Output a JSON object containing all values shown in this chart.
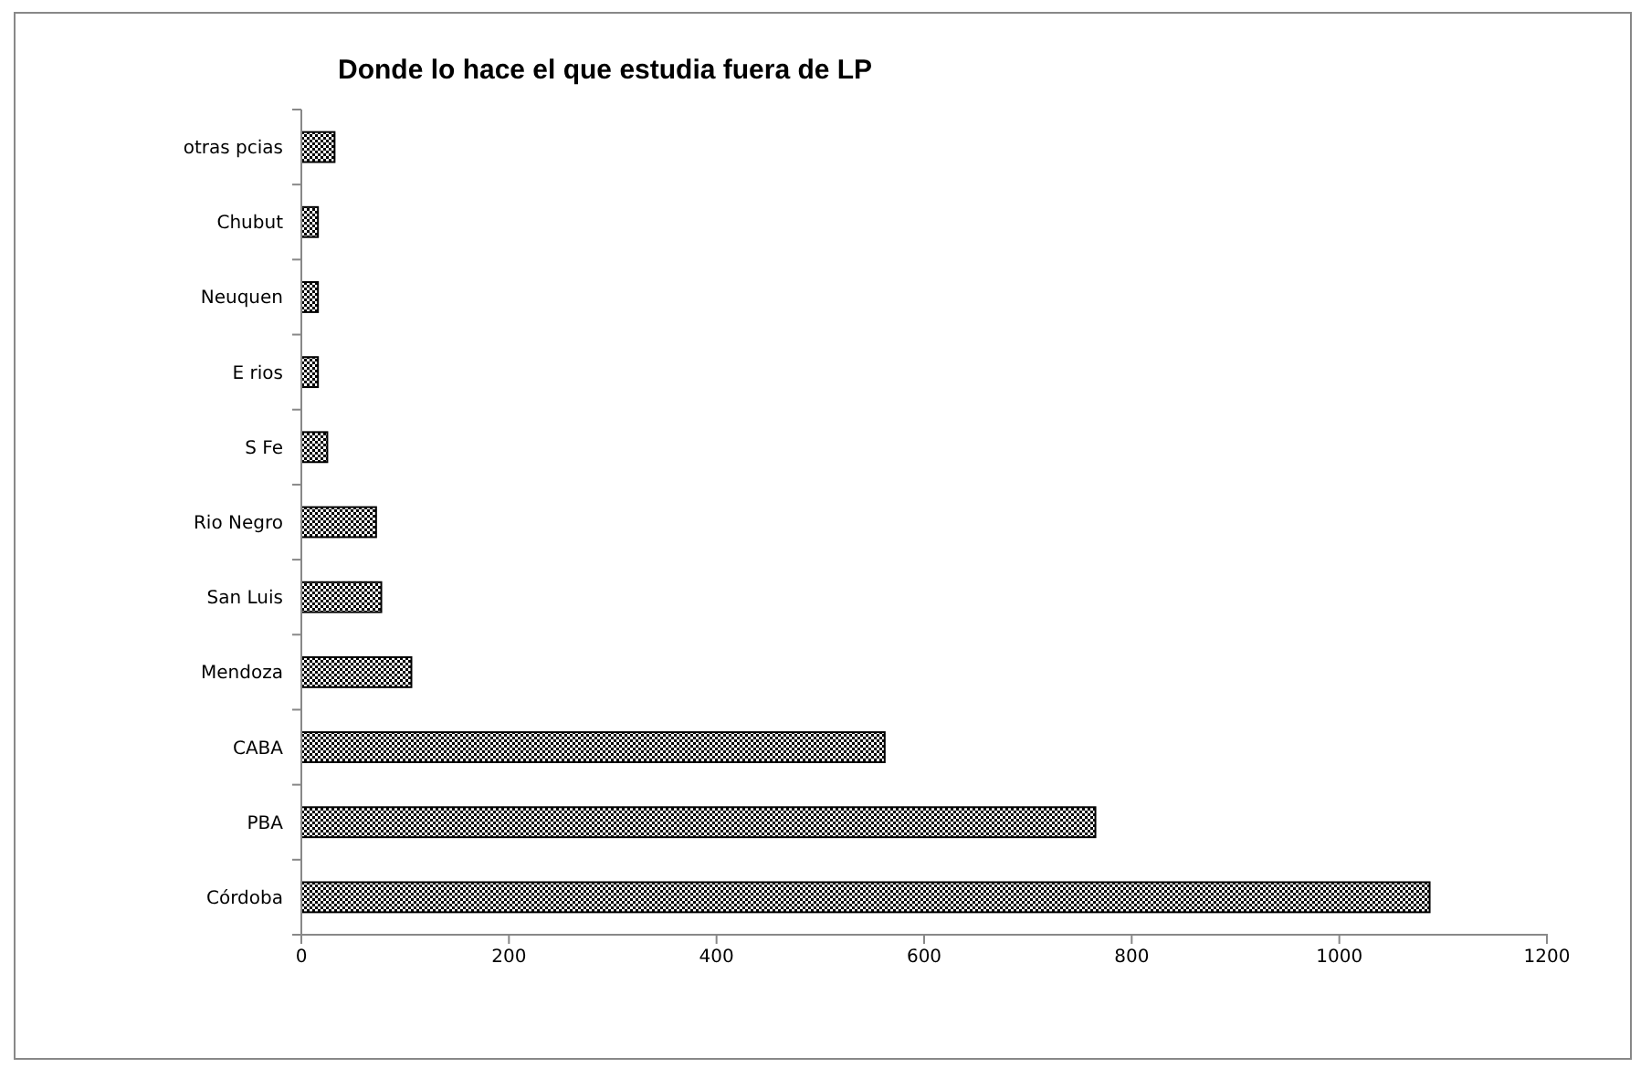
{
  "chart_data": {
    "type": "bar",
    "orientation": "horizontal",
    "title": "Donde lo hace el que estudia fuera de LP",
    "categories": [
      "otras pcias",
      "Chubut",
      "Neuquen",
      "E rios",
      "S Fe",
      "Rio Negro",
      "San Luis",
      "Mendoza",
      "CABA",
      "PBA",
      "Córdoba"
    ],
    "values": [
      32,
      16,
      16,
      16,
      25,
      72,
      77,
      106,
      562,
      765,
      1087
    ],
    "color": "#000000",
    "xlim": [
      0,
      1200
    ],
    "xticks": [
      0,
      200,
      400,
      600,
      800,
      1000,
      1200
    ],
    "grid": false
  }
}
